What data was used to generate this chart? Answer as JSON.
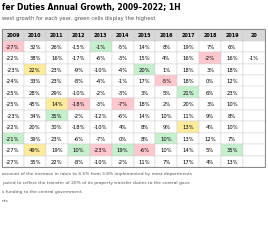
{
  "title_part": "fer Duties Annual Growth, 2009–2022; 1H",
  "subtitle": "west growth for each year, green cells display the highest",
  "columns": [
    "2009",
    "2010",
    "2011",
    "2012",
    "2013",
    "2014",
    "2015",
    "2016",
    "2017",
    "2018",
    "2019",
    "20"
  ],
  "rows": [
    [
      -27,
      32,
      26,
      -15,
      -1,
      -5,
      14,
      8,
      19,
      7,
      6,
      null
    ],
    [
      -22,
      38,
      16,
      -17,
      -6,
      -3,
      15,
      4,
      16,
      -2,
      16,
      -1
    ],
    [
      -23,
      22,
      23,
      -9,
      -10,
      -4,
      20,
      1,
      18,
      3,
      18,
      null
    ],
    [
      -24,
      33,
      23,
      -8,
      -4,
      -1,
      17,
      -5,
      18,
      0,
      12,
      null
    ],
    [
      -25,
      28,
      29,
      -10,
      -2,
      -3,
      3,
      5,
      21,
      6,
      23,
      null
    ],
    [
      -25,
      45,
      14,
      -18,
      -3,
      -7,
      18,
      2,
      20,
      3,
      10,
      null
    ],
    [
      -23,
      34,
      35,
      -2,
      -12,
      -6,
      14,
      10,
      11,
      9,
      8,
      null
    ],
    [
      -22,
      20,
      30,
      -18,
      -10,
      4,
      8,
      9,
      13,
      4,
      10,
      null
    ],
    [
      -21,
      39,
      23,
      -6,
      -7,
      0,
      8,
      10,
      13,
      12,
      7,
      null
    ],
    [
      -27,
      49,
      19,
      10,
      -23,
      19,
      -6,
      10,
      14,
      5,
      35,
      null
    ],
    [
      -27,
      35,
      22,
      -8,
      -10,
      -2,
      11,
      7,
      17,
      4,
      13,
      null
    ]
  ],
  "cell_colors": [
    [
      "salmon",
      "white",
      "white",
      "white",
      "lightgreen",
      "white",
      "white",
      "white",
      "white",
      "white",
      "white",
      "white"
    ],
    [
      "white",
      "white",
      "white",
      "white",
      "white",
      "white",
      "white",
      "white",
      "white",
      "salmon",
      "white",
      "white"
    ],
    [
      "white",
      "peachpuff",
      "white",
      "white",
      "white",
      "white",
      "lightgreen",
      "white",
      "white",
      "white",
      "white",
      "white"
    ],
    [
      "white",
      "white",
      "white",
      "white",
      "white",
      "white",
      "white",
      "salmon",
      "white",
      "white",
      "white",
      "white"
    ],
    [
      "white",
      "white",
      "white",
      "white",
      "white",
      "white",
      "white",
      "white",
      "lightgreen",
      "white",
      "white",
      "white"
    ],
    [
      "white",
      "white",
      "peachpuff",
      "salmon",
      "white",
      "salmon",
      "white",
      "white",
      "white",
      "white",
      "white",
      "white"
    ],
    [
      "white",
      "white",
      "lightgreen",
      "white",
      "white",
      "white",
      "white",
      "white",
      "white",
      "white",
      "white",
      "white"
    ],
    [
      "white",
      "white",
      "white",
      "white",
      "white",
      "white",
      "white",
      "white",
      "peachpuff",
      "white",
      "white",
      "white"
    ],
    [
      "lightgreen",
      "white",
      "white",
      "white",
      "white",
      "white",
      "white",
      "lightgreen",
      "white",
      "white",
      "white",
      "white"
    ],
    [
      "white",
      "peachpuff",
      "white",
      "lightgreen",
      "salmon",
      "lightgreen",
      "salmon",
      "white",
      "white",
      "white",
      "lightgreen",
      "white"
    ],
    [
      "white",
      "white",
      "white",
      "white",
      "white",
      "white",
      "white",
      "white",
      "white",
      "white",
      "white",
      "white"
    ]
  ],
  "footnotes": [
    "account of the increase in rates to 4.5% from 3.8% implemented by most departments",
    "justed to reflect the transfer of 20% of its property transfer duties to the central gove",
    "s funding to the central government.",
    "nts"
  ],
  "bg_color": "#ffffff",
  "title_fontsize": 5.5,
  "subtitle_fontsize": 3.8,
  "header_fontsize": 3.5,
  "cell_fontsize": 3.8,
  "footnote_fontsize": 3.2
}
